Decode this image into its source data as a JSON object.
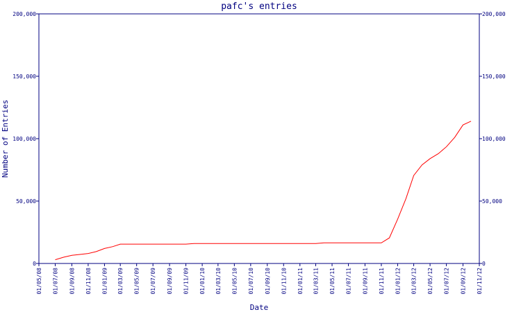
{
  "chart_data": {
    "type": "line",
    "title": "pafc's entries",
    "xlabel": "Date",
    "ylabel": "Number of Entries",
    "x": [
      "01/07/08",
      "01/08/08",
      "01/09/08",
      "01/10/08",
      "01/11/08",
      "01/12/08",
      "01/01/09",
      "01/02/09",
      "01/03/09",
      "01/04/09",
      "01/05/09",
      "01/06/09",
      "01/07/09",
      "01/08/09",
      "01/09/09",
      "01/10/09",
      "01/11/09",
      "01/12/09",
      "01/01/10",
      "01/02/10",
      "01/03/10",
      "01/04/10",
      "01/05/10",
      "01/06/10",
      "01/07/10",
      "01/08/10",
      "01/09/10",
      "01/10/10",
      "01/11/10",
      "01/12/10",
      "01/01/11",
      "01/02/11",
      "01/03/11",
      "01/04/11",
      "01/05/11",
      "01/06/11",
      "01/07/11",
      "01/08/11",
      "01/09/11",
      "01/10/11",
      "01/11/11",
      "01/12/11",
      "01/01/12",
      "01/02/12",
      "01/03/12",
      "01/04/12",
      "01/05/12",
      "01/06/12",
      "01/07/12",
      "01/08/12",
      "01/09/12",
      "01/10/12"
    ],
    "series": [
      {
        "name": "Entries",
        "color": "#ff0000",
        "values": [
          3000,
          5000,
          6500,
          7200,
          8000,
          9500,
          12000,
          13500,
          15500,
          15500,
          15500,
          15500,
          15500,
          15500,
          15500,
          15500,
          15500,
          16000,
          16000,
          16000,
          16000,
          16000,
          16000,
          16000,
          16000,
          16000,
          16000,
          16000,
          16000,
          16000,
          16000,
          16000,
          16000,
          16500,
          16500,
          16500,
          16500,
          16500,
          16500,
          16500,
          16500,
          20500,
          35500,
          52000,
          70500,
          79000,
          84000,
          88000,
          93500,
          101000,
          111000,
          114000
        ]
      }
    ],
    "xlim": [
      "01/05/08",
      "01/11/12"
    ],
    "xticks": [
      "01/05/08",
      "01/07/08",
      "01/09/08",
      "01/11/08",
      "01/01/09",
      "01/03/09",
      "01/05/09",
      "01/07/09",
      "01/09/09",
      "01/11/09",
      "01/01/10",
      "01/03/10",
      "01/05/10",
      "01/07/10",
      "01/09/10",
      "01/11/10",
      "01/01/11",
      "01/03/11",
      "01/05/11",
      "01/07/11",
      "01/09/11",
      "01/11/11",
      "01/01/12",
      "01/03/12",
      "01/05/12",
      "01/07/12",
      "01/09/12",
      "01/11/12"
    ],
    "ylim": [
      0,
      200000
    ],
    "yticks": [
      0,
      {
        "value": 50000,
        "label": "50,000"
      },
      {
        "value": 100000,
        "label": "100,000"
      },
      {
        "value": 150000,
        "label": "150,000"
      },
      {
        "value": 200000,
        "label": "200,000"
      }
    ],
    "y2lim": [
      0,
      200000
    ],
    "y2ticks": [
      0,
      {
        "value": 50000,
        "label": "50,000"
      },
      {
        "value": 100000,
        "label": "100,000"
      },
      {
        "value": 150000,
        "label": "150,000"
      },
      {
        "value": 200000,
        "label": "200,000"
      }
    ],
    "axis_color": "#000080"
  }
}
